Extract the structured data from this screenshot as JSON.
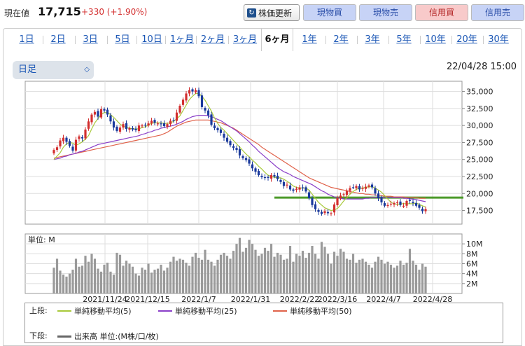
{
  "header": {
    "price_label": "現在値",
    "price": "17,715",
    "change": "+330 (+1.90%)",
    "update_button": "株価更新",
    "buy_cash": "現物買",
    "sell_cash": "現物売",
    "buy_margin": "信用買",
    "sell_margin": "信用売"
  },
  "tabs": [
    "1日",
    "2日",
    "3日",
    "5日",
    "10日",
    "1ヶ月",
    "2ヶ月",
    "3ヶ月",
    "6ヶ月",
    "1年",
    "2年",
    "3年",
    "5年",
    "10年",
    "20年",
    "30年"
  ],
  "selected_tab": "6ヶ月",
  "interval_select": "日足",
  "timestamp": "22/04/28 15:00",
  "colors": {
    "up": "#d32f2f",
    "down": "#1a3a9c",
    "ma5": "#a8c93a",
    "ma25": "#8a3fc8",
    "ma50": "#e0624a",
    "support": "#4c9a2a",
    "volume": "#9a9a9a"
  },
  "chart_data": {
    "type": "candlestick",
    "price_axis": {
      "ticks": [
        "35,000",
        "32,500",
        "30,000",
        "27,500",
        "25,000",
        "22,500",
        "20,000",
        "17,500"
      ],
      "range": [
        15500,
        36500
      ]
    },
    "volume_axis": {
      "unit_label": "単位: M",
      "ticks": [
        "10M",
        "8M",
        "6M",
        "4M",
        "2M"
      ],
      "range": [
        0,
        12
      ]
    },
    "x_labels": [
      "2021/11/24",
      "2021/12/15",
      "2022/1/7",
      "2022/1/31",
      "2022/2/22",
      "2022/3/16",
      "2022/4/7",
      "2022/4/28"
    ],
    "support_line": 19400,
    "close": [
      26400,
      26800,
      27800,
      28200,
      27600,
      27000,
      26300,
      27900,
      28400,
      28100,
      29400,
      30600,
      31600,
      32000,
      31300,
      32400,
      32200,
      31600,
      30600,
      29700,
      29200,
      29700,
      30200,
      29500,
      29600,
      29400,
      29300,
      30000,
      30000,
      30100,
      30300,
      30700,
      30400,
      30300,
      30200,
      29900,
      30200,
      30700,
      30800,
      31900,
      32900,
      33800,
      34700,
      35200,
      35000,
      35200,
      34300,
      32700,
      32200,
      31500,
      30100,
      29600,
      29300,
      28900,
      28200,
      27600,
      27100,
      26700,
      26400,
      25600,
      25200,
      24900,
      24400,
      23700,
      23200,
      22700,
      22400,
      22300,
      22300,
      22700,
      22500,
      22100,
      21700,
      21100,
      21300,
      20600,
      20400,
      20700,
      20900,
      20800,
      20300,
      19300,
      18300,
      17700,
      17300,
      17000,
      17400,
      17100,
      17100,
      18400,
      19300,
      19700,
      19900,
      20400,
      20800,
      20900,
      21100,
      20600,
      20800,
      21000,
      21200,
      20900,
      20000,
      19300,
      18700,
      18200,
      18300,
      18500,
      18600,
      18700,
      18300,
      18200,
      18900,
      18900,
      18600,
      18200,
      17900,
      17400,
      17715
    ],
    "ma5": [
      25000,
      25500,
      26000,
      26800,
      27300,
      27500,
      27400,
      27100,
      27300,
      27600,
      28000,
      28500,
      29500,
      30400,
      31000,
      31600,
      31900,
      31900,
      31600,
      31200,
      30700,
      30200,
      29900,
      29700,
      29600,
      29500,
      29500,
      29500,
      29700,
      29800,
      30100,
      30300,
      30400,
      30400,
      30400,
      30300,
      30300,
      30400,
      30600,
      31000,
      31400,
      32200,
      33000,
      33800,
      34300,
      34700,
      34700,
      34300,
      33700,
      32900,
      32100,
      31100,
      30300,
      29700,
      29300,
      28800,
      28300,
      27800,
      27300,
      26800,
      26300,
      25800,
      25400,
      24900,
      24500,
      24000,
      23600,
      23100,
      22700,
      22500,
      22400,
      22300,
      22300,
      22100,
      21800,
      21500,
      21100,
      20900,
      20800,
      20800,
      20800,
      20500,
      19900,
      19300,
      18700,
      18300,
      17900,
      17700,
      17500,
      17600,
      17800,
      18300,
      18900,
      19400,
      19900,
      20300,
      20600,
      20800,
      20800,
      20900,
      21000,
      21000,
      20800,
      20500,
      20200,
      19700,
      19200,
      18700,
      18500,
      18400,
      18500,
      18500,
      18500,
      18500,
      18500,
      18600,
      18400,
      18200,
      18000
    ],
    "ma25": [
      25000,
      25100,
      25200,
      25400,
      25500,
      25700,
      25800,
      25900,
      26100,
      26200,
      26400,
      26600,
      26800,
      27000,
      27200,
      27300,
      27400,
      27500,
      27600,
      27700,
      27800,
      27900,
      28000,
      28100,
      28200,
      28300,
      28400,
      28500,
      28700,
      28800,
      29000,
      29100,
      29300,
      29400,
      29600,
      29700,
      29800,
      29900,
      30000,
      30200,
      30400,
      30600,
      30900,
      31100,
      31300,
      31400,
      31500,
      31500,
      31500,
      31400,
      31300,
      31100,
      30900,
      30700,
      30400,
      30100,
      29800,
      29500,
      29200,
      28800,
      28400,
      28000,
      27600,
      27100,
      26700,
      26200,
      25800,
      25400,
      25000,
      24600,
      24200,
      23800,
      23500,
      23200,
      23000,
      22800,
      22500,
      22300,
      22100,
      21900,
      21700,
      21500,
      21300,
      21000,
      20700,
      20400,
      20200,
      19900,
      19700,
      19500,
      19400,
      19300,
      19200,
      19200,
      19200,
      19200,
      19200,
      19200,
      19200,
      19300,
      19300,
      19400,
      19400,
      19400,
      19400,
      19400,
      19400,
      19400,
      19400,
      19400,
      19400,
      19300,
      19300,
      19200,
      19200,
      19100,
      19000,
      18900,
      18800
    ],
    "ma50": [
      25200,
      25300,
      25400,
      25500,
      25600,
      25700,
      25800,
      25900,
      26000,
      26100,
      26200,
      26300,
      26400,
      26500,
      26600,
      26700,
      26800,
      26900,
      27000,
      27100,
      27200,
      27300,
      27400,
      27500,
      27600,
      27700,
      27800,
      27900,
      28000,
      28100,
      28200,
      28300,
      28400,
      28500,
      28600,
      28800,
      29000,
      29300,
      29600,
      29900,
      30100,
      30300,
      30500,
      30600,
      30700,
      30800,
      30800,
      30800,
      30800,
      30800,
      30700,
      30600,
      30500,
      30400,
      30200,
      30000,
      29800,
      29600,
      29300,
      29000,
      28700,
      28400,
      28100,
      27800,
      27500,
      27200,
      26800,
      26500,
      26200,
      25900,
      25600,
      25300,
      25000,
      24700,
      24400,
      24100,
      23800,
      23500,
      23200,
      22900,
      22600,
      22300,
      22100,
      21900,
      21700,
      21500,
      21300,
      21100,
      20900,
      20800,
      20700,
      20600,
      20500,
      20400,
      20300,
      20200,
      20100,
      20000,
      20000,
      19900,
      19900,
      19800,
      19800,
      19700,
      19700,
      19600,
      19600,
      19600,
      19500,
      19500,
      19500,
      19500,
      19400,
      19400,
      19400,
      19400,
      19300,
      19300,
      19300
    ],
    "volume": [
      5.2,
      7.0,
      4.6,
      3.8,
      3.4,
      4.0,
      4.8,
      7.0,
      5.4,
      5.6,
      7.6,
      6.4,
      8.0,
      7.0,
      5.0,
      4.4,
      5.8,
      6.2,
      4.4,
      3.8,
      8.2,
      7.8,
      5.6,
      6.6,
      6.0,
      5.4,
      4.0,
      3.6,
      5.2,
      4.8,
      6.0,
      4.2,
      4.8,
      5.0,
      5.8,
      4.6,
      5.2,
      6.4,
      7.4,
      6.6,
      7.0,
      6.8,
      6.2,
      5.6,
      7.4,
      8.2,
      7.2,
      6.8,
      8.8,
      6.8,
      6.4,
      5.6,
      6.8,
      7.8,
      8.2,
      7.6,
      7.0,
      8.6,
      10.0,
      11.2,
      8.4,
      9.2,
      10.8,
      10.0,
      8.8,
      7.6,
      8.0,
      9.2,
      8.6,
      10.0,
      7.4,
      8.2,
      7.8,
      6.8,
      7.0,
      9.6,
      6.4,
      8.0,
      7.6,
      8.6,
      7.2,
      8.2,
      9.6,
      8.0,
      7.0,
      10.4,
      9.4,
      8.0,
      6.0,
      8.4,
      7.6,
      9.0,
      8.4,
      7.0,
      6.8,
      8.0,
      6.2,
      6.8,
      7.0,
      6.4,
      5.8,
      5.2,
      6.4,
      7.4,
      6.8,
      6.0,
      6.4,
      5.8,
      5.2,
      5.6,
      6.6,
      5.8,
      6.2,
      9.0,
      6.6,
      5.8,
      4.8,
      6.0,
      5.4
    ]
  },
  "legend": {
    "upper_label": "上段:",
    "ma5": "単純移動平均(5)",
    "ma25": "単純移動平均(25)",
    "ma50": "単純移動平均(50)",
    "lower_label": "下段:",
    "volume": "出来高 単位:(M株/口/枚)"
  }
}
